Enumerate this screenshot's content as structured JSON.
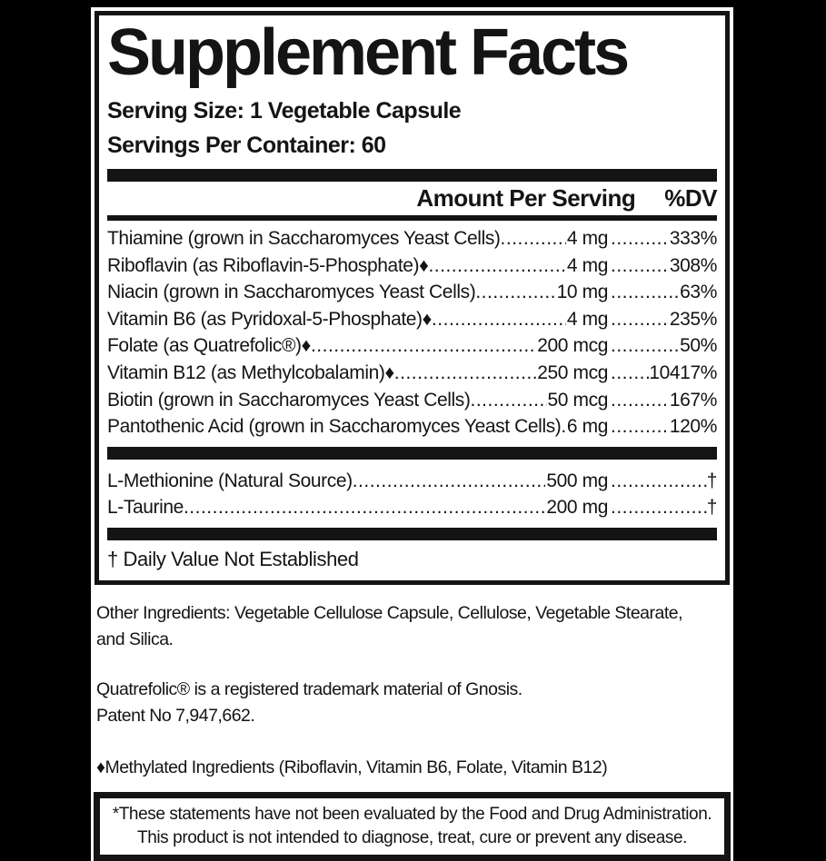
{
  "colors": {
    "ink": "#141414",
    "paper": "#ffffff",
    "background": "#000000"
  },
  "label": {
    "title": "Supplement Facts",
    "serving_size": "Serving Size: 1 Vegetable Capsule",
    "servings_per_container": "Servings Per Container: 60",
    "header": {
      "amount": "Amount Per Serving",
      "dv": "%DV"
    },
    "vitamins": [
      {
        "name": "Thiamine (grown in Saccharomyces Yeast Cells)",
        "amount": "4 mg",
        "dv": "333%"
      },
      {
        "name": "Riboflavin (as Riboflavin-5-Phosphate)♦",
        "amount": "4 mg",
        "dv": "308%"
      },
      {
        "name": "Niacin (grown in Saccharomyces Yeast Cells)",
        "amount": "10 mg",
        "dv": "63%"
      },
      {
        "name": "Vitamin B6 (as Pyridoxal-5-Phosphate)♦",
        "amount": "4 mg",
        "dv": "235%"
      },
      {
        "name": "Folate (as Quatrefolic®)♦",
        "amount": "200 mcg",
        "dv": "50%"
      },
      {
        "name": "Vitamin B12 (as Methylcobalamin)♦",
        "amount": "250 mcg",
        "dv": "10417%"
      },
      {
        "name": "Biotin (grown in Saccharomyces Yeast Cells)",
        "amount": "50 mcg",
        "dv": "167%"
      },
      {
        "name": "Pantothenic Acid (grown in Saccharomyces Yeast Cells)",
        "amount": "6 mg",
        "dv": "120%"
      }
    ],
    "other_actives": [
      {
        "name": "L-Methionine (Natural Source)",
        "amount": "500 mg",
        "dv": "†"
      },
      {
        "name": "L-Taurine",
        "amount": "200 mg",
        "dv": "†"
      }
    ],
    "dagger_note": "† Daily Value Not Established"
  },
  "info": {
    "other_ingredients": "Other Ingredients: Vegetable Cellulose Capsule, Cellulose, Vegetable Stearate,\nand Silica.",
    "trademark": "Quatrefolic® is a registered trademark material of Gnosis.",
    "patent": "Patent No 7,947,662.",
    "methylated": "♦Methylated Ingredients (Riboflavin, Vitamin B6, Folate, Vitamin B12)"
  },
  "disclaimer": {
    "line1": "*These statements have not been evaluated by the Food and Drug Administration.",
    "line2": "This product is not intended to diagnose, treat, cure or prevent any disease."
  }
}
